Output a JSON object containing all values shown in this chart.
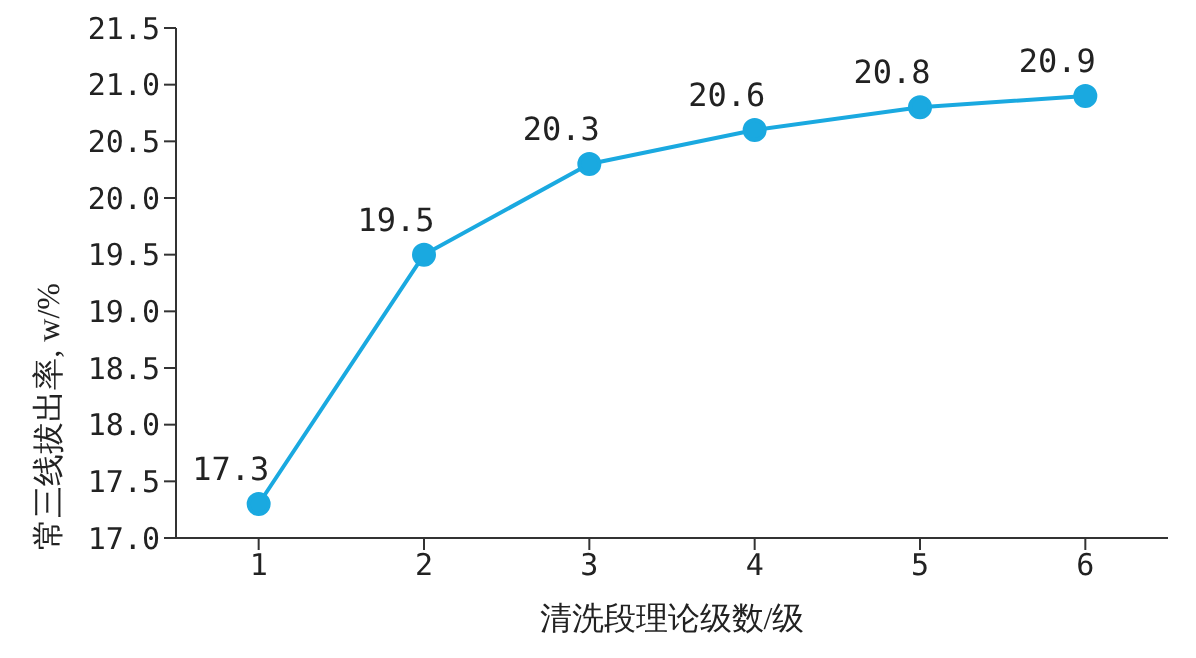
{
  "chart_data": {
    "type": "line",
    "xlabel": "清洗段理论级数/级",
    "ylabel": "常三线拔出率, w/%",
    "x": [
      1,
      2,
      3,
      4,
      5,
      6
    ],
    "series": [
      {
        "color": "#1aa9e0",
        "values": [
          17.3,
          19.5,
          20.3,
          20.6,
          20.8,
          20.9
        ]
      }
    ],
    "xlim": [
      0.5,
      6.5
    ],
    "xticks": [
      1,
      2,
      3,
      4,
      5,
      6
    ],
    "ylim": [
      17,
      21.5
    ],
    "yticks": [
      {
        "value": 17,
        "label": "17.0"
      },
      {
        "value": 17.5,
        "label": "17.5"
      },
      {
        "value": 18,
        "label": "18.0"
      },
      {
        "value": 18.5,
        "label": "18.5"
      },
      {
        "value": 19,
        "label": "19.0"
      },
      {
        "value": 19.5,
        "label": "19.5"
      },
      {
        "value": 20,
        "label": "20.0"
      },
      {
        "value": 20.5,
        "label": "20.5"
      },
      {
        "value": 21,
        "label": "21.0"
      },
      {
        "value": 21.5,
        "label": "21.5"
      }
    ],
    "grid": false,
    "legend": false,
    "marker": "circle",
    "line_style": "solid",
    "data_labels": true
  }
}
